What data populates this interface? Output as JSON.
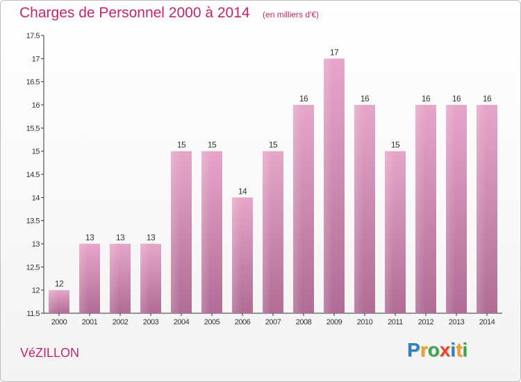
{
  "chart_data": {
    "type": "bar",
    "title": "Charges de Personnel 2000 à 2014",
    "subtitle": "(en milliers d'€)",
    "categories": [
      "2000",
      "2001",
      "2002",
      "2003",
      "2004",
      "2005",
      "2006",
      "2007",
      "2008",
      "2009",
      "2010",
      "2011",
      "2012",
      "2013",
      "2014"
    ],
    "values": [
      12,
      13,
      13,
      13,
      15,
      15,
      14,
      15,
      16,
      17,
      16,
      15,
      16,
      16,
      16
    ],
    "data_labels": [
      "12",
      "13",
      "13",
      "13",
      "15",
      "15",
      "14",
      "15",
      "16",
      "17",
      "16",
      "15",
      "16",
      "16",
      "16"
    ],
    "ylim": [
      11.5,
      17.5
    ],
    "yticks": [
      11.5,
      12,
      12.5,
      13,
      13.5,
      14,
      14.5,
      15,
      15.5,
      16,
      16.5,
      17,
      17.5
    ],
    "ytick_labels": [
      "11.5",
      "12",
      "12.5",
      "13",
      "13.5",
      "14",
      "14.5",
      "15",
      "15.5",
      "16",
      "16.5",
      "17",
      "17.5"
    ],
    "grid": false,
    "bar_color": "#d98cb5"
  },
  "footer": {
    "commune": "VéZILLON",
    "brand_letters": [
      {
        "char": "P",
        "color": "#2f7fc4"
      },
      {
        "char": "r",
        "color": "#f0a21b"
      },
      {
        "char": "o",
        "color": "#3aa84a"
      },
      {
        "char": "x",
        "color": "#e8452c"
      },
      {
        "char": "i",
        "color": "#2f7fc4"
      },
      {
        "char": "t",
        "color": "#f0a21b"
      },
      {
        "char": "i",
        "color": "#3aa84a"
      }
    ]
  },
  "colors": {
    "title": "#c3246b",
    "axis": "#333333"
  }
}
